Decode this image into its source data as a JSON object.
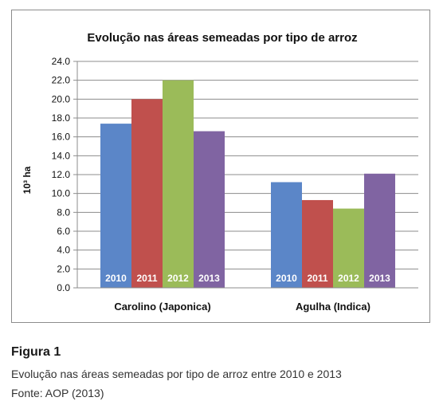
{
  "chart_data": {
    "type": "bar",
    "title": "Evolução nas áreas semeadas por tipo de arroz",
    "ylabel": "10³ ha",
    "xlabel": "",
    "ylim": [
      0,
      24
    ],
    "yticks": [
      "0.0",
      "2.0",
      "4.0",
      "6.0",
      "8.0",
      "10.0",
      "12.0",
      "14.0",
      "16.0",
      "18.0",
      "20.0",
      "22.0",
      "24.0"
    ],
    "grid": true,
    "categories": [
      "Carolino (Japonica)",
      "Agulha (Indica)"
    ],
    "series": [
      {
        "name": "2010",
        "values": [
          17.4,
          11.2
        ],
        "color": "#5b86c8"
      },
      {
        "name": "2011",
        "values": [
          20.0,
          9.3
        ],
        "color": "#c0504d"
      },
      {
        "name": "2012",
        "values": [
          22.0,
          8.4
        ],
        "color": "#9bbb59"
      },
      {
        "name": "2013",
        "values": [
          16.6,
          12.1
        ],
        "color": "#8064a2"
      }
    ]
  },
  "caption": {
    "label": "Figura 1",
    "description": "Evolução nas áreas semeadas por tipo de arroz entre 2010 e 2013",
    "source": "Fonte: AOP (2013)"
  }
}
